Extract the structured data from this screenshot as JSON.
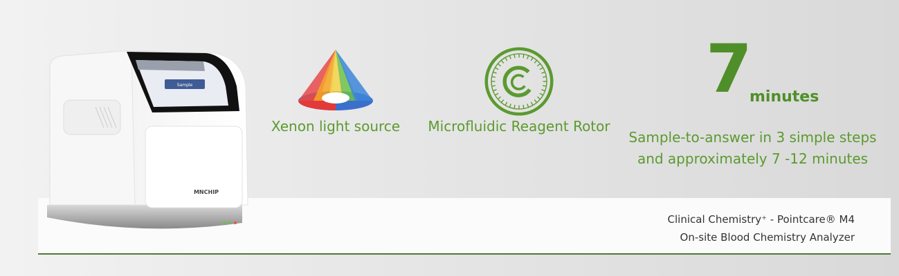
{
  "device": {
    "brand": "MNCHIP",
    "screen_button": "Sample"
  },
  "features": [
    {
      "label": "Xenon light source",
      "icon": "xenon-light-cone-icon"
    },
    {
      "label": "Microfluidic Reagent Rotor",
      "icon": "reagent-rotor-icon"
    },
    {
      "number": "7",
      "unit": "minutes",
      "label_line1": "Sample-to-answer in 3 simple steps",
      "label_line2": "and approximately 7 -12 minutes"
    }
  ],
  "product": {
    "line1": "Clinical Chemistry⁺ - Pointcare® M4",
    "line2": "On-site Blood Chemistry Analyzer"
  },
  "colors": {
    "accent_green": "#5b9a2f",
    "dark_green": "#4f8f29",
    "divider": "#4e7a33"
  }
}
